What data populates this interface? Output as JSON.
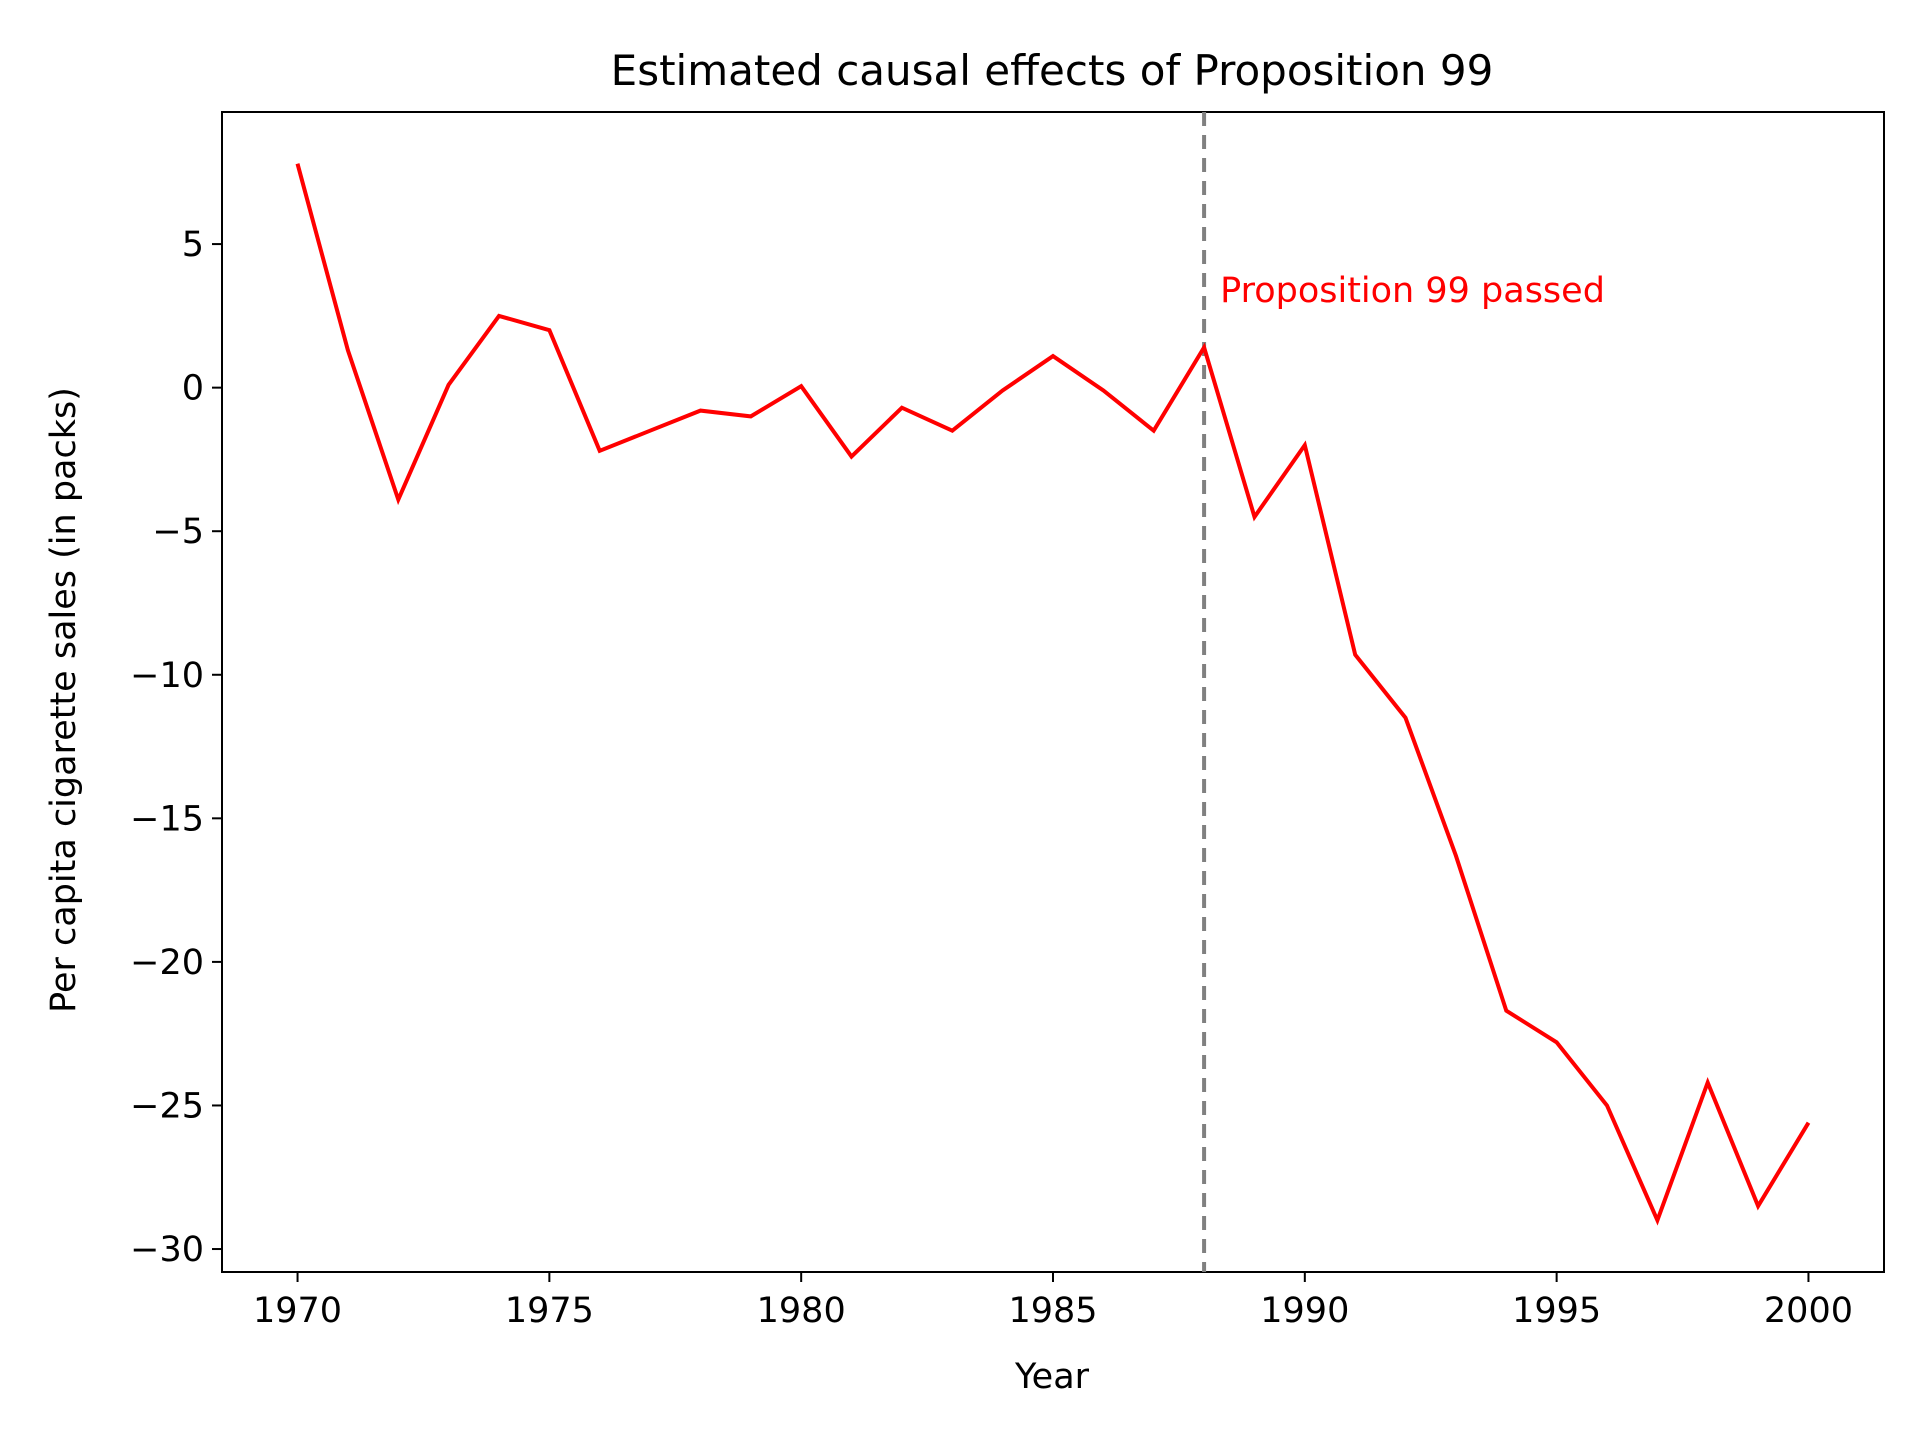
{
  "chart_data": {
    "type": "line",
    "title": "Estimated causal effects of Proposition 99",
    "xlabel": "Year",
    "ylabel": "Per capita cigarette sales (in packs)",
    "xlim": [
      1968.5,
      2001.5
    ],
    "ylim": [
      -30.8,
      9.6
    ],
    "x_ticks": [
      1970,
      1975,
      1980,
      1985,
      1990,
      1995,
      2000
    ],
    "y_ticks": [
      5,
      0,
      -5,
      -10,
      -15,
      -20,
      -25,
      -30
    ],
    "x_tick_labels": [
      "1970",
      "1975",
      "1980",
      "1985",
      "1990",
      "1995",
      "2000"
    ],
    "y_tick_labels": [
      "5",
      "0",
      "−5",
      "−10",
      "−15",
      "−20",
      "−25",
      "−30"
    ],
    "grid": false,
    "series": [
      {
        "color": "#ff0000",
        "x": [
          1970,
          1971,
          1972,
          1973,
          1974,
          1975,
          1976,
          1977,
          1978,
          1979,
          1980,
          1981,
          1982,
          1983,
          1984,
          1985,
          1986,
          1987,
          1988,
          1989,
          1990,
          1991,
          1992,
          1993,
          1994,
          1995,
          1996,
          1997,
          1998,
          1999,
          2000
        ],
        "values": [
          7.8,
          1.3,
          -3.9,
          0.1,
          2.5,
          2.0,
          -2.2,
          -1.5,
          -0.8,
          -1.0,
          0.05,
          -2.4,
          -0.7,
          -1.5,
          -0.1,
          1.1,
          -0.1,
          -1.5,
          1.4,
          -4.5,
          -2.0,
          -9.3,
          -11.5,
          -16.3,
          -21.7,
          -22.8,
          -25.0,
          -29.0,
          -24.2,
          -28.5,
          -25.6
        ]
      }
    ],
    "reference_line": {
      "x": 1988,
      "color": "#808080",
      "style": "dashed",
      "label": "Proposition 99 passed",
      "label_color": "#ff0000",
      "label_y": 3.4
    }
  }
}
